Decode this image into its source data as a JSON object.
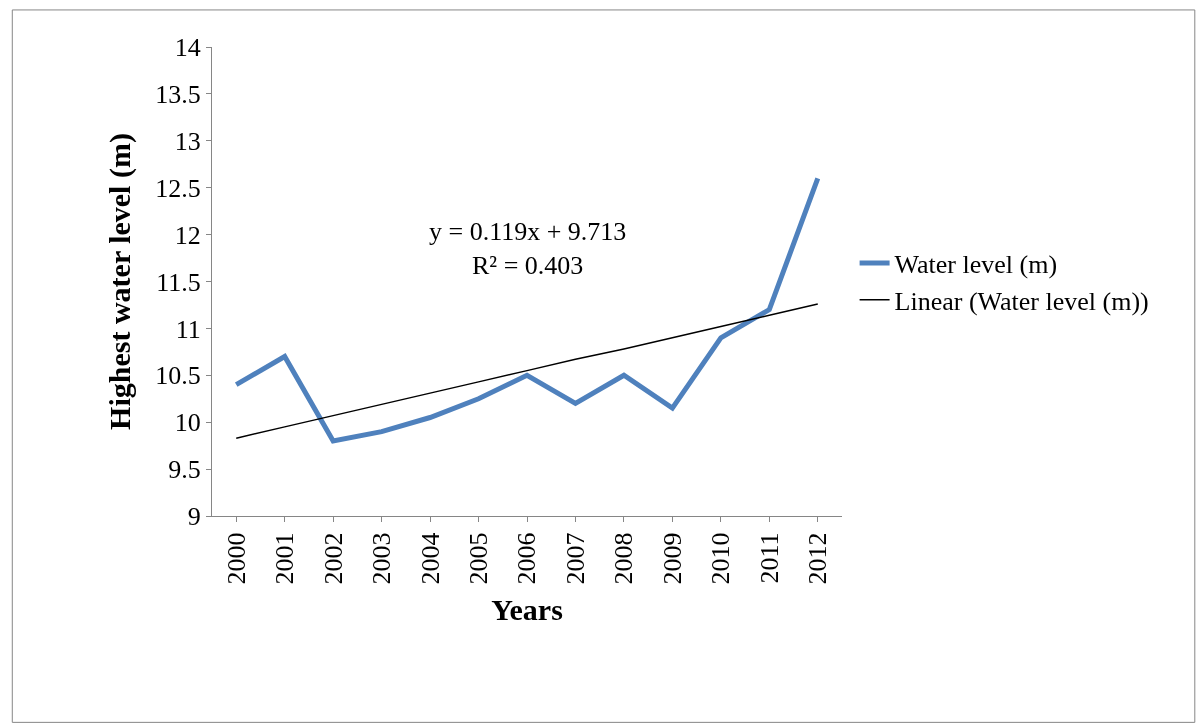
{
  "chart_data": {
    "type": "line",
    "xlabel": "Years",
    "ylabel": "Highest water level (m)",
    "categories": [
      "2000",
      "2001",
      "2002",
      "2003",
      "2004",
      "2005",
      "2006",
      "2007",
      "2008",
      "2009",
      "2010",
      "2011",
      "2012"
    ],
    "series": [
      {
        "name": "Water level (m)",
        "color": "#4f81bd",
        "values": [
          10.4,
          10.7,
          9.8,
          9.9,
          10.05,
          10.25,
          10.5,
          10.2,
          10.5,
          10.15,
          10.9,
          11.2,
          12.6
        ]
      },
      {
        "name": "Linear (Water level (m))",
        "color": "#000000",
        "values": [
          9.83,
          9.95,
          10.07,
          10.19,
          10.31,
          10.43,
          10.55,
          10.67,
          10.78,
          10.9,
          11.02,
          11.14,
          11.26
        ]
      }
    ],
    "annotations": [
      "y = 0.119x + 9.713\nR² = 0.403"
    ],
    "ylim": [
      9,
      14
    ],
    "yticks": [
      9,
      9.5,
      10,
      10.5,
      11,
      11.5,
      12,
      12.5,
      13,
      13.5,
      14
    ],
    "legend": "right",
    "marker": "none"
  }
}
